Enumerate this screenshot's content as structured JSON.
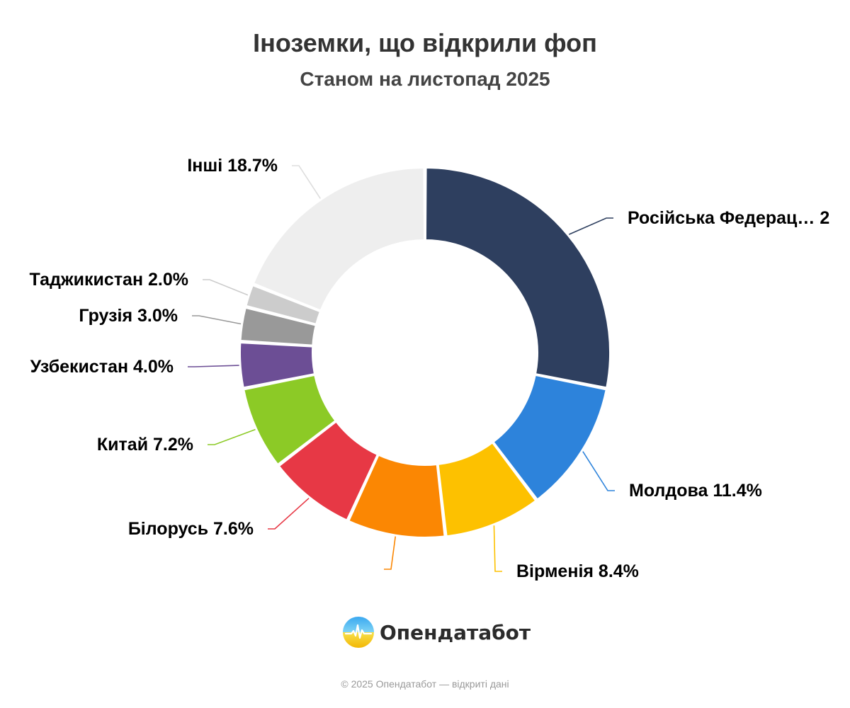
{
  "chart_data": {
    "type": "pie",
    "title": "Іноземки, що відкрили фоп",
    "subtitle": "Станом на листопад 2025",
    "donut": true,
    "legend": "none",
    "slices": [
      {
        "label": "Російська Федерац…",
        "display": "Російська Федерац… 2",
        "value": 27.7,
        "color": "#2e3f5f"
      },
      {
        "label": "Молдова",
        "display": "Молдова 11.4%",
        "value": 11.4,
        "color": "#2d83db"
      },
      {
        "label": "Вірменія",
        "display": "Вірменія 8.4%",
        "value": 8.4,
        "color": "#fdc100"
      },
      {
        "label": "",
        "display": "",
        "value": 8.5,
        "color": "#fb8703"
      },
      {
        "label": "Білорусь",
        "display": "Білорусь 7.6%",
        "value": 7.6,
        "color": "#e73845"
      },
      {
        "label": "Китай",
        "display": "Китай 7.2%",
        "value": 7.2,
        "color": "#8cca26"
      },
      {
        "label": "Узбекистан",
        "display": "Узбекистан 4.0%",
        "value": 4.0,
        "color": "#6c4e95"
      },
      {
        "label": "Грузія",
        "display": "Грузія 3.0%",
        "value": 3.0,
        "color": "#999999"
      },
      {
        "label": "Таджикистан",
        "display": "Таджикистан 2.0%",
        "value": 2.0,
        "color": "#cccccc"
      },
      {
        "label": "Інші",
        "display": "Інші 18.7%",
        "value": 18.7,
        "color": "#eeeeee"
      }
    ]
  },
  "brand": {
    "name": "Опендатабот",
    "icon": "opendatabot-logo-icon"
  },
  "footer": {
    "copyright": "© 2025 Опендатабот — відкриті дані"
  }
}
